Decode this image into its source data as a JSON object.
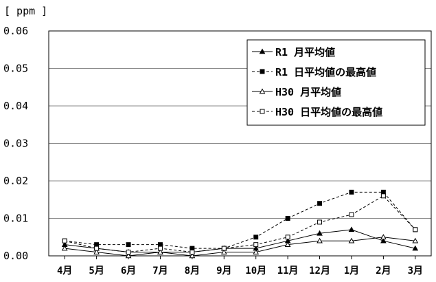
{
  "chart_data": {
    "type": "line",
    "ylabel": "[ ppm ]",
    "categories": [
      "4月",
      "5月",
      "6月",
      "7月",
      "8月",
      "9月",
      "10月",
      "11月",
      "12月",
      "1月",
      "2月",
      "3月"
    ],
    "ylim": [
      0,
      0.06
    ],
    "yticks": [
      "0.00",
      "0.01",
      "0.02",
      "0.03",
      "0.04",
      "0.05",
      "0.06"
    ],
    "grid": true,
    "legend_position": "top-right",
    "series": [
      {
        "name": "R1 月平均値",
        "line_style": "solid",
        "marker": "filled-triangle",
        "values": [
          0.003,
          0.002,
          0.001,
          0.001,
          0.001,
          0.002,
          0.002,
          0.004,
          0.006,
          0.007,
          0.004,
          0.002
        ]
      },
      {
        "name": "R1 日平均値の最高値",
        "line_style": "dashed",
        "marker": "filled-square",
        "values": [
          0.004,
          0.003,
          0.003,
          0.003,
          0.002,
          0.002,
          0.005,
          0.01,
          0.014,
          0.017,
          0.017,
          0.007
        ]
      },
      {
        "name": "H30 月平均値",
        "line_style": "solid",
        "marker": "open-triangle",
        "values": [
          0.002,
          0.001,
          0.0,
          0.001,
          0.0,
          0.001,
          0.001,
          0.003,
          0.004,
          0.004,
          0.005,
          0.004
        ]
      },
      {
        "name": "H30 日平均値の最高値",
        "line_style": "dashed",
        "marker": "open-square",
        "values": [
          0.004,
          0.002,
          0.001,
          0.002,
          0.001,
          0.002,
          0.003,
          0.005,
          0.009,
          0.011,
          0.016,
          0.007
        ]
      }
    ]
  }
}
